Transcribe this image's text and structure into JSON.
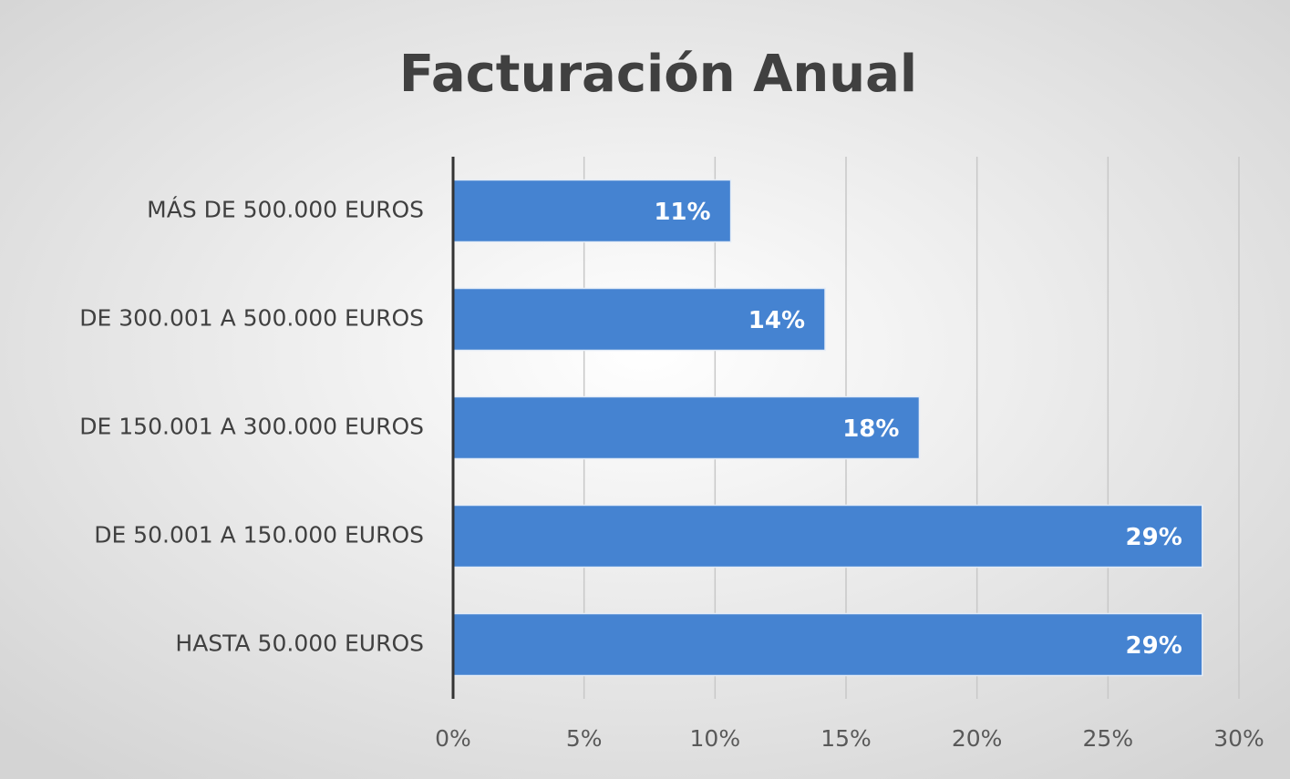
{
  "chart_data": {
    "type": "bar",
    "orientation": "horizontal",
    "title": "Facturación Anual",
    "categories": [
      "MÁS DE 500.000 EUROS",
      "DE 300.001 A 500.000 EUROS",
      "DE 150.001 A 300.000 EUROS",
      "DE 50.001 A 150.000 EUROS",
      "HASTA 50.000 EUROS"
    ],
    "values": [
      10.6,
      14.2,
      17.8,
      28.6,
      28.6
    ],
    "value_labels": [
      "11%",
      "14%",
      "18%",
      "29%",
      "29%"
    ],
    "color": "#4583d1",
    "xlim": [
      0,
      30
    ],
    "xticks": [
      {
        "value": 0,
        "label": "0%"
      },
      {
        "value": 5,
        "label": "5%"
      },
      {
        "value": 10,
        "label": "10%"
      },
      {
        "value": 15,
        "label": "15%"
      },
      {
        "value": 20,
        "label": "20%"
      },
      {
        "value": 25,
        "label": "25%"
      },
      {
        "value": 30,
        "label": "30%"
      }
    ],
    "grid": true
  }
}
